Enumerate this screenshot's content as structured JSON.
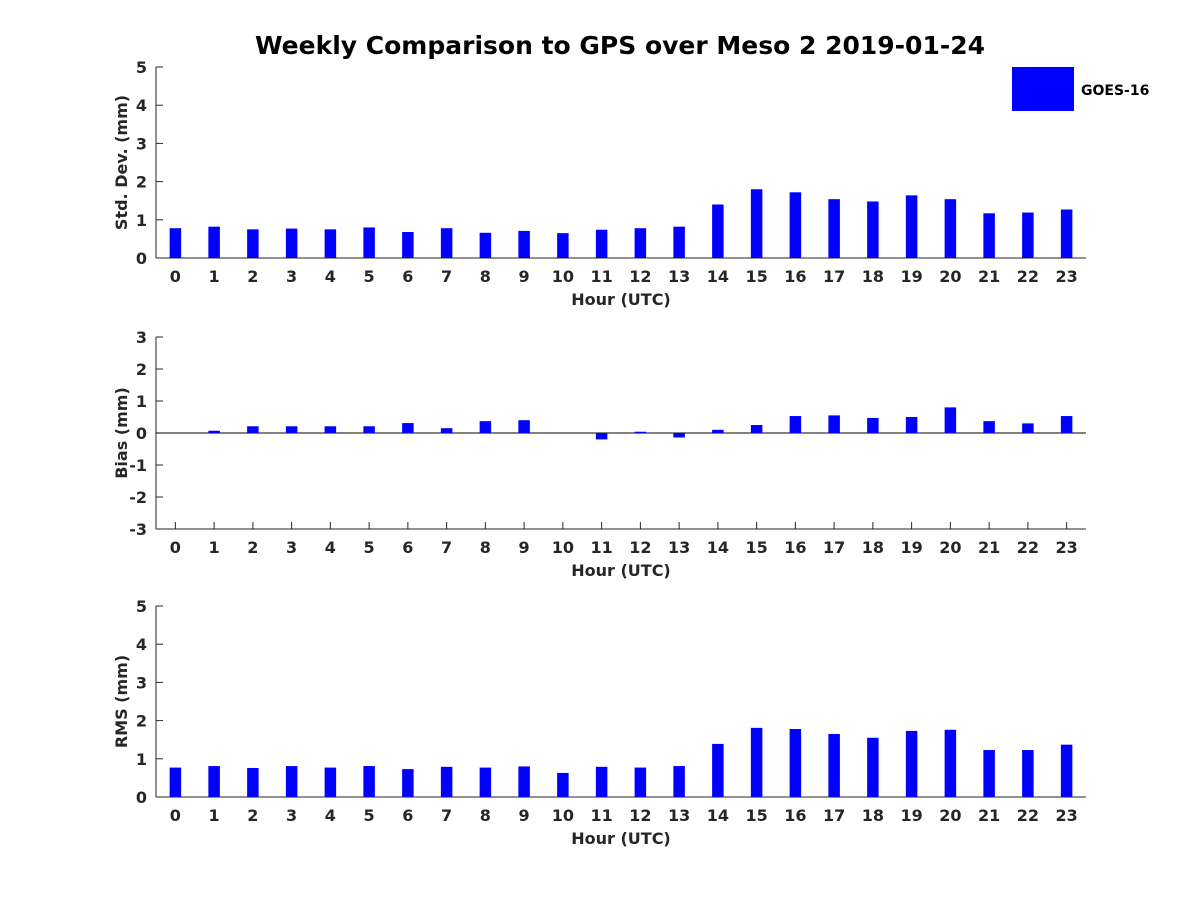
{
  "title": "Weekly Comparison to GPS over Meso 2 2019-01-24",
  "legend": {
    "label": "GOES-16",
    "color": "#0000FF",
    "placement": "top-right"
  },
  "chart_data": [
    {
      "type": "bar",
      "name": "stddev",
      "xlabel": "Hour (UTC)",
      "ylabel": "Std. Dev. (mm)",
      "ylim": [
        0,
        5
      ],
      "yticks": [
        "0",
        "1",
        "2",
        "3",
        "4",
        "5"
      ],
      "categories": [
        "0",
        "1",
        "2",
        "3",
        "4",
        "5",
        "6",
        "7",
        "8",
        "9",
        "10",
        "11",
        "12",
        "13",
        "14",
        "15",
        "16",
        "17",
        "18",
        "19",
        "20",
        "21",
        "22",
        "23"
      ],
      "series": [
        {
          "name": "GOES-16",
          "values": [
            0.78,
            0.82,
            0.75,
            0.77,
            0.75,
            0.8,
            0.68,
            0.78,
            0.66,
            0.71,
            0.65,
            0.74,
            0.78,
            0.82,
            1.4,
            1.8,
            1.72,
            1.54,
            1.48,
            1.64,
            1.54,
            1.17,
            1.19,
            1.27
          ]
        }
      ]
    },
    {
      "type": "bar",
      "name": "bias",
      "xlabel": "Hour (UTC)",
      "ylabel": "Bias (mm)",
      "ylim": [
        -3,
        3
      ],
      "yticks": [
        "-3",
        "-2",
        "-1",
        "0",
        "1",
        "2",
        "3"
      ],
      "categories": [
        "0",
        "1",
        "2",
        "3",
        "4",
        "5",
        "6",
        "7",
        "8",
        "9",
        "10",
        "11",
        "12",
        "13",
        "14",
        "15",
        "16",
        "17",
        "18",
        "19",
        "20",
        "21",
        "22",
        "23"
      ],
      "series": [
        {
          "name": "GOES-16",
          "values": [
            0.0,
            0.07,
            0.21,
            0.21,
            0.21,
            0.21,
            0.31,
            0.15,
            0.37,
            0.4,
            0.0,
            -0.2,
            0.04,
            -0.14,
            0.1,
            0.25,
            0.53,
            0.55,
            0.47,
            0.5,
            0.8,
            0.37,
            0.3,
            0.53
          ]
        }
      ]
    },
    {
      "type": "bar",
      "name": "rms",
      "xlabel": "Hour (UTC)",
      "ylabel": "RMS (mm)",
      "ylim": [
        0,
        5
      ],
      "yticks": [
        "0",
        "1",
        "2",
        "3",
        "4",
        "5"
      ],
      "categories": [
        "0",
        "1",
        "2",
        "3",
        "4",
        "5",
        "6",
        "7",
        "8",
        "9",
        "10",
        "11",
        "12",
        "13",
        "14",
        "15",
        "16",
        "17",
        "18",
        "19",
        "20",
        "21",
        "22",
        "23"
      ],
      "series": [
        {
          "name": "GOES-16",
          "values": [
            0.77,
            0.81,
            0.76,
            0.81,
            0.77,
            0.81,
            0.73,
            0.79,
            0.77,
            0.8,
            0.63,
            0.79,
            0.77,
            0.81,
            1.39,
            1.81,
            1.78,
            1.65,
            1.55,
            1.73,
            1.76,
            1.23,
            1.23,
            1.37
          ]
        }
      ]
    }
  ]
}
